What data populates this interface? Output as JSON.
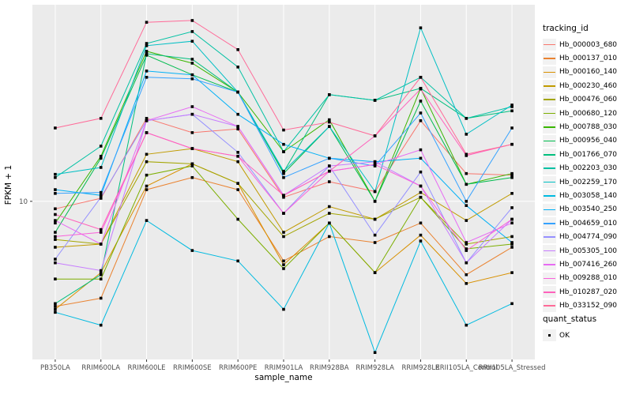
{
  "chart_data": {
    "type": "line",
    "title": "",
    "xlabel": "sample_name",
    "ylabel": "FPKM + 1",
    "y_scale": "log10",
    "y_tick_labels": [
      "10"
    ],
    "y_ticks": [
      10
    ],
    "ylim": [
      2.15,
      67.6
    ],
    "grid": "major-on",
    "legend_position": "right",
    "panel_bg": "#EBEBEB",
    "grid_color": "#FFFFFF",
    "tick_label_color": "#4D4D4D",
    "point_marker": "black-square",
    "x_categories": [
      "PB350LA",
      "RRIM600LA",
      "RRIM600LE",
      "RRIM600SE",
      "RRIM600PE",
      "RRIM901LA",
      "RRIM928BA",
      "RRIM928LA",
      "RRIM928LE",
      "RRII105LA_Control",
      "RRII105LA_Stressed"
    ],
    "legend": {
      "series_title": "tracking_id",
      "shape_title": "quant_status",
      "shape_items": [
        {
          "label": "OK",
          "marker": "black-square"
        }
      ]
    },
    "series": [
      {
        "name": "Hb_000003_680",
        "color": "#F8766D",
        "values": [
          9.3,
          10.3,
          22.4,
          19.5,
          20.2,
          10.4,
          12.1,
          11.0,
          21.9,
          13.1,
          12.9
        ]
      },
      {
        "name": "Hb_000137_010",
        "color": "#EA8331",
        "values": [
          3.6,
          3.9,
          11.2,
          12.6,
          11.2,
          5.6,
          7.1,
          6.7,
          8.1,
          4.9,
          6.4
        ]
      },
      {
        "name": "Hb_000160_140",
        "color": "#D89000",
        "values": [
          3.5,
          5.0,
          11.6,
          14.4,
          11.9,
          5.4,
          8.1,
          5.0,
          7.2,
          4.5,
          5.0
        ]
      },
      {
        "name": "Hb_000230_460",
        "color": "#C09B00",
        "values": [
          6.4,
          6.6,
          15.8,
          16.7,
          14.7,
          7.4,
          9.5,
          8.4,
          10.9,
          8.3,
          10.8
        ]
      },
      {
        "name": "Hb_000476_060",
        "color": "#A3A500",
        "values": [
          6.9,
          6.6,
          14.7,
          14.4,
          11.9,
          7.1,
          8.9,
          8.4,
          10.4,
          6.6,
          7.1
        ]
      },
      {
        "name": "Hb_000680_120",
        "color": "#7CAE00",
        "values": [
          4.7,
          4.7,
          12.9,
          14.1,
          8.4,
          5.2,
          8.1,
          5.0,
          10.4,
          6.3,
          6.6
        ]
      },
      {
        "name": "Hb_000788_030",
        "color": "#39B600",
        "values": [
          8.1,
          15.5,
          43.0,
          38.3,
          28.9,
          16.2,
          22.1,
          10.0,
          30.0,
          11.8,
          13.1
        ]
      },
      {
        "name": "Hb_000956_040",
        "color": "#00BB4E",
        "values": [
          7.4,
          15.2,
          41.4,
          34.2,
          28.9,
          13.1,
          20.7,
          10.0,
          26.5,
          11.8,
          12.6
        ]
      },
      {
        "name": "Hb_001766_070",
        "color": "#00BF7D",
        "values": [
          3.7,
          4.9,
          42.0,
          39.8,
          28.9,
          13.3,
          28.2,
          26.7,
          30.0,
          22.4,
          24.1
        ]
      },
      {
        "name": "Hb_002203_030",
        "color": "#00C1A3",
        "values": [
          12.6,
          17.1,
          46.4,
          52.1,
          36.9,
          16.2,
          28.2,
          26.7,
          33.4,
          22.4,
          25.1
        ]
      },
      {
        "name": "Hb_002259_170",
        "color": "#00BFC4",
        "values": [
          13.0,
          13.9,
          45.4,
          47.4,
          28.9,
          13.4,
          20.7,
          11.0,
          54.0,
          19.2,
          25.5
        ]
      },
      {
        "name": "Hb_003058_140",
        "color": "#00BAE0",
        "values": [
          3.4,
          3.0,
          8.3,
          6.2,
          5.6,
          3.5,
          8.1,
          2.3,
          6.8,
          3.0,
          3.7
        ]
      },
      {
        "name": "Hb_003540_250",
        "color": "#00B0F6",
        "values": [
          11.2,
          10.6,
          35.5,
          34.2,
          23.3,
          17.4,
          15.2,
          14.7,
          15.2,
          9.6,
          6.7
        ]
      },
      {
        "name": "Hb_004659_010",
        "color": "#35A2FF",
        "values": [
          10.8,
          10.9,
          33.4,
          32.9,
          28.9,
          12.6,
          15.2,
          14.1,
          23.6,
          10.0,
          20.4
        ]
      },
      {
        "name": "Hb_004774_090",
        "color": "#9590FF",
        "values": [
          5.7,
          10.4,
          21.9,
          23.3,
          16.1,
          8.9,
          14.1,
          7.2,
          13.3,
          5.5,
          9.4
        ]
      },
      {
        "name": "Hb_005305_100",
        "color": "#C77CFF",
        "values": [
          5.5,
          5.1,
          21.9,
          23.3,
          20.7,
          10.6,
          14.1,
          14.7,
          11.6,
          5.5,
          8.4
        ]
      },
      {
        "name": "Hb_007416_260",
        "color": "#E76BF3",
        "values": [
          8.3,
          6.6,
          21.9,
          25.1,
          20.7,
          10.6,
          13.4,
          14.3,
          16.5,
          6.7,
          8.1
        ]
      },
      {
        "name": "Hb_009288_010",
        "color": "#FA62DB",
        "values": [
          7.1,
          7.4,
          19.5,
          16.7,
          15.5,
          8.9,
          13.4,
          14.3,
          11.6,
          6.2,
          8.4
        ]
      },
      {
        "name": "Hb_010287_020",
        "color": "#FF62BC",
        "values": [
          8.8,
          7.6,
          19.5,
          16.7,
          15.5,
          10.6,
          13.4,
          18.9,
          29.8,
          15.6,
          17.4
        ]
      },
      {
        "name": "Hb_033152_090",
        "color": "#FF6A98",
        "values": [
          20.4,
          22.4,
          57.0,
          58.0,
          43.7,
          20.0,
          21.6,
          18.9,
          33.4,
          15.8,
          17.4
        ]
      }
    ]
  }
}
